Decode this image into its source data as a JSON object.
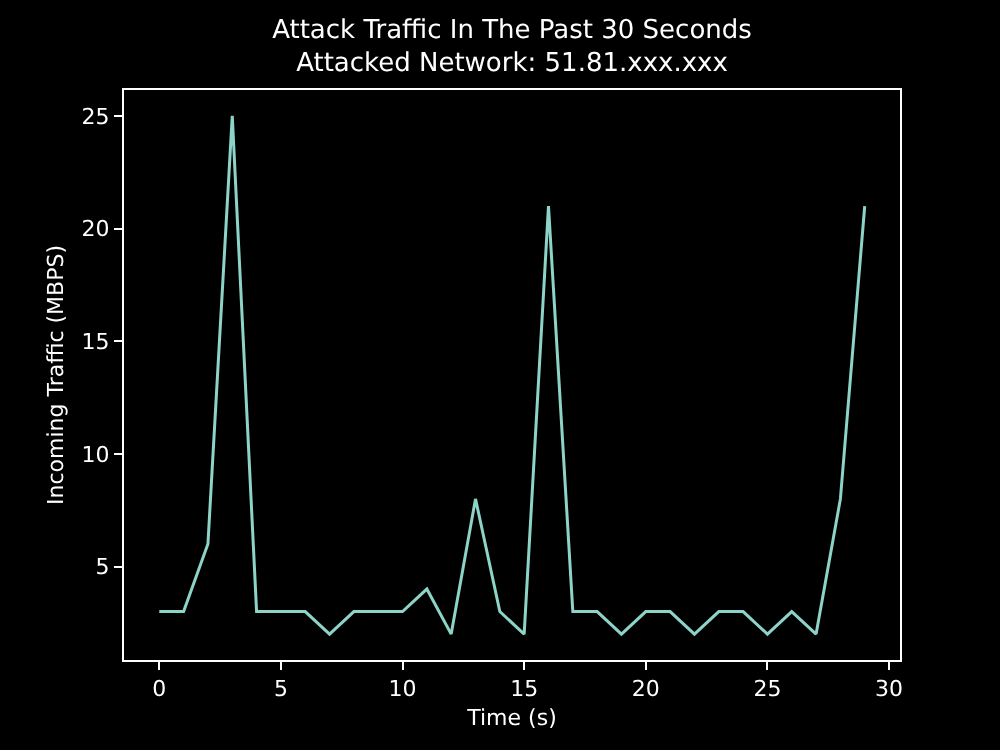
{
  "chart_data": {
    "type": "line",
    "title": "Attack Traffic In The Past 30 Seconds",
    "subtitle": "Attacked Network: 51.81.xxx.xxx",
    "xlabel": "Time (s)",
    "ylabel": "Incoming Traffic (MBPS)",
    "x": [
      0,
      1,
      2,
      3,
      4,
      5,
      6,
      7,
      8,
      9,
      10,
      11,
      12,
      13,
      14,
      15,
      16,
      17,
      18,
      19,
      20,
      21,
      22,
      23,
      24,
      25,
      26,
      27,
      28,
      29
    ],
    "series": [
      {
        "color": "#8dd3c7",
        "values": [
          3,
          3,
          6,
          25,
          3,
          3,
          3,
          2,
          3,
          3,
          3,
          4,
          2,
          8,
          3,
          2,
          21,
          3,
          3,
          2,
          3,
          3,
          2,
          3,
          3,
          2,
          3,
          2,
          8,
          21
        ]
      }
    ],
    "xlim": [
      -1.45,
      30.45
    ],
    "ylim": [
      0.85,
      26.15
    ],
    "xticks": [
      0,
      5,
      10,
      15,
      20,
      25,
      30
    ],
    "yticks": [
      5,
      10,
      15,
      20,
      25
    ],
    "grid": false,
    "marker": "none",
    "line_style": "solid"
  }
}
